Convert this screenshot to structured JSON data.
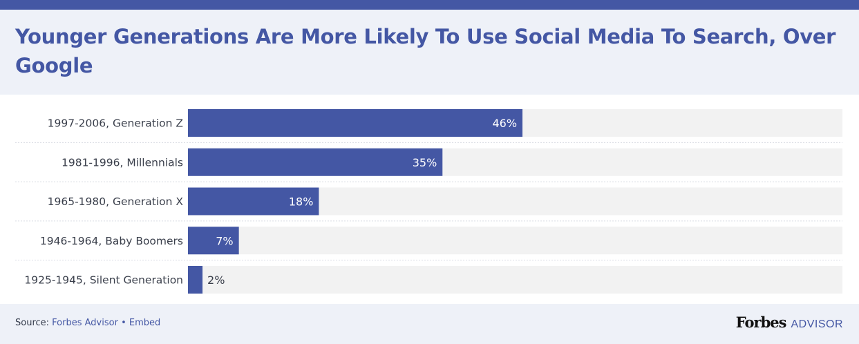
{
  "title": "Younger Generations Are More Likely To Use Social Media To Search, Over Google",
  "footer": {
    "source_prefix": "Source:",
    "source_name": "Forbes Advisor",
    "separator": "•",
    "embed": "Embed",
    "brand_logo": "Forbes",
    "brand_sub": "ADVISOR"
  },
  "colors": {
    "bar": "#4457a4",
    "track": "#f2f2f2",
    "header_bg": "#eef1f8",
    "label_inside": "#ffffff",
    "label_outside": "#3a3f4b"
  },
  "chart_data": {
    "type": "bar",
    "orientation": "horizontal",
    "categories": [
      "1997-2006, Generation Z",
      "1981-1996, Millennials",
      "1965-1980, Generation X",
      "1946-1964, Baby Boomers",
      "1925-1945, Silent Generation"
    ],
    "values": [
      46,
      35,
      18,
      7,
      2
    ],
    "value_labels": [
      "46%",
      "35%",
      "18%",
      "7%",
      "2%"
    ],
    "unit": "%",
    "xlim": [
      0,
      90
    ],
    "grid": false,
    "legend": "none"
  }
}
